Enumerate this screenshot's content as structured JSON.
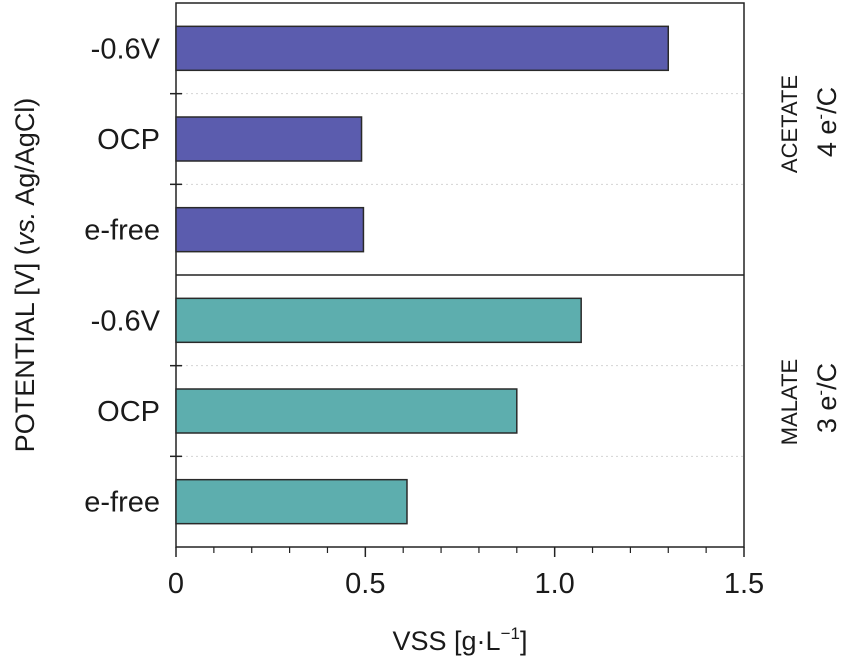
{
  "chart_data": {
    "type": "bar",
    "orientation": "horizontal",
    "xlabel": "VSS [g·L",
    "xlabel_sup": "−1",
    "xlabel_end": "]",
    "ylabel_pre": "POTENTIAL [V] (",
    "ylabel_italic": "vs.",
    "ylabel_post": " Ag/AgCl)",
    "xlim": [
      0,
      1.5
    ],
    "xticks": [
      0,
      0.5,
      1.0,
      1.5
    ],
    "xtick_labels": [
      "0",
      "0.5",
      "1.0",
      "1.5"
    ],
    "grid": "horizontal dotted",
    "panels": [
      {
        "name": "ACETATE",
        "sub_pre": "4 e",
        "sub_sup": "-",
        "sub_post": "/C",
        "color": "#5b5cae",
        "categories": [
          "-0.6V",
          "OCP",
          "e-free"
        ],
        "values": [
          1.3,
          0.49,
          0.495
        ]
      },
      {
        "name": "MALATE",
        "sub_pre": "3 e",
        "sub_sup": "-",
        "sub_post": "/C",
        "color": "#5daeae",
        "categories": [
          "-0.6V",
          "OCP",
          "e-free"
        ],
        "values": [
          1.07,
          0.9,
          0.61
        ]
      }
    ]
  }
}
